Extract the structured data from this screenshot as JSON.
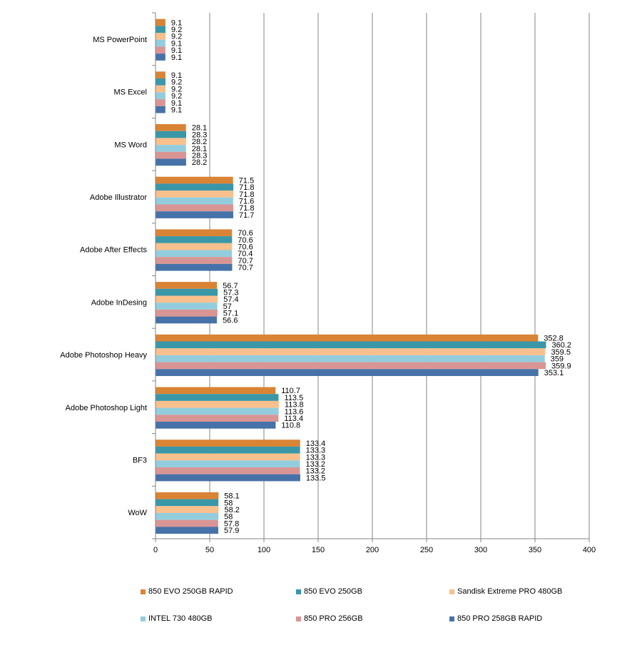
{
  "chart_data": {
    "type": "bar",
    "orientation": "horizontal",
    "title": "",
    "xlabel": "",
    "ylabel": "",
    "xlim": [
      0,
      400
    ],
    "x_ticks": [
      "0",
      "50",
      "100",
      "150",
      "200",
      "250",
      "300",
      "350",
      "400"
    ],
    "grid": "vertical",
    "legend_position": "bottom",
    "categories": [
      "MS PowerPoint",
      "MS Excel",
      "MS Word",
      "Adobe Illustrator",
      "Adobe After Effects",
      "Adobe InDesing",
      "Adobe Photoshop Heavy",
      "Adobe Photoshop Light",
      "BF3",
      "WoW"
    ],
    "series": [
      {
        "name": "850 EVO 250GB RAPID",
        "color": "#D98335",
        "values": [
          9.1,
          9.1,
          28.1,
          71.5,
          70.6,
          56.7,
          352.8,
          110.7,
          133.4,
          58.1
        ],
        "labels": [
          "9.1",
          "9.1",
          "28.1",
          "71.5",
          "70.6",
          "56.7",
          "352.8",
          "110.7",
          "133.4",
          "58.1"
        ]
      },
      {
        "name": "850 EVO 250GB",
        "color": "#3A97A8",
        "values": [
          9.2,
          9.2,
          28.3,
          71.8,
          70.6,
          57.3,
          360.2,
          113.5,
          133.3,
          58
        ],
        "labels": [
          "9.2",
          "9.2",
          "28.3",
          "71.8",
          "70.6",
          "57.3",
          "360.2",
          "113.5",
          "133.3",
          "58"
        ]
      },
      {
        "name": "Sandisk Extreme PRO 480GB",
        "color": "#F8C08D",
        "values": [
          9.2,
          9.2,
          28.2,
          71.8,
          70.6,
          57.4,
          359.5,
          113.8,
          133.3,
          58.2
        ],
        "labels": [
          "9.2",
          "9.2",
          "28.2",
          "71.8",
          "70.6",
          "57.4",
          "359.5",
          "113.8",
          "133.3",
          "58.2"
        ]
      },
      {
        "name": "INTEL 730 480GB",
        "color": "#93CDDD",
        "values": [
          9.1,
          9.2,
          28.1,
          71.6,
          70.4,
          57,
          359,
          113.6,
          133.2,
          58
        ],
        "labels": [
          "9.1",
          "9.2",
          "28.1",
          "71.6",
          "70.4",
          "57",
          "359",
          "113.6",
          "133.2",
          "58"
        ]
      },
      {
        "name": "850 PRO 256GB",
        "color": "#D99594",
        "values": [
          9.1,
          9.1,
          28.3,
          71.8,
          70.7,
          57.1,
          359.9,
          113.4,
          133.2,
          57.8
        ],
        "labels": [
          "9.1",
          "9.1",
          "28.3",
          "71.8",
          "70.7",
          "57.1",
          "359.9",
          "113.4",
          "133.2",
          "57.8"
        ]
      },
      {
        "name": "850 PRO 258GB RAPID",
        "color": "#4672A8",
        "values": [
          9.1,
          9.1,
          28.2,
          71.7,
          70.7,
          56.6,
          353.1,
          110.8,
          133.5,
          57.9
        ],
        "labels": [
          "9.1",
          "9.1",
          "28.2",
          "71.7",
          "70.7",
          "56.6",
          "353.1",
          "110.8",
          "133.5",
          "57.9"
        ]
      }
    ],
    "colors": {
      "grid": "#868686",
      "axis": "#868686",
      "background": "#FFFFFF"
    }
  }
}
